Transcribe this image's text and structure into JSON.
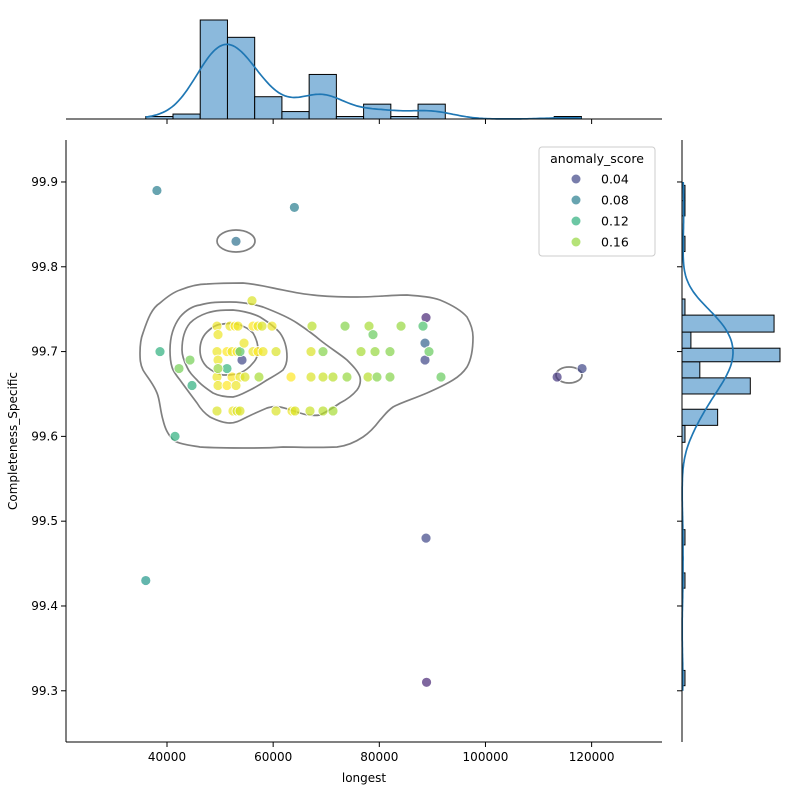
{
  "chart_data": {
    "type": "scatter",
    "kind": "jointplot",
    "xlabel": "longest",
    "ylabel": "Completeness_Specific",
    "xlim": [
      20970,
      133260
    ],
    "ylim": [
      99.2396,
      99.9495
    ],
    "xticks": [
      40000,
      60000,
      80000,
      100000,
      120000
    ],
    "xtick_labels": [
      "40000",
      "60000",
      "80000",
      "100000",
      "120000"
    ],
    "yticks": [
      99.3,
      99.4,
      99.5,
      99.6,
      99.7,
      99.8,
      99.9
    ],
    "ytick_labels": [
      "99.3",
      "99.4",
      "99.5",
      "99.6",
      "99.7",
      "99.8",
      "99.9"
    ],
    "grid": false,
    "hue": {
      "name": "anomaly_score",
      "colormap": "viridis",
      "norm": [
        0.0,
        0.19
      ],
      "legend_values": [
        0.04,
        0.08,
        0.12,
        0.16
      ],
      "legend_labels": [
        "0.04",
        "0.08",
        "0.12",
        "0.16"
      ]
    },
    "legend": {
      "title": "anomaly_score",
      "placement": "top-right"
    },
    "points": [
      {
        "x": 38100,
        "y": 99.89,
        "score": 0.08
      },
      {
        "x": 64000,
        "y": 99.87,
        "score": 0.08
      },
      {
        "x": 53000,
        "y": 99.83,
        "score": 0.07
      },
      {
        "x": 38680,
        "y": 99.7,
        "score": 0.12
      },
      {
        "x": 41510,
        "y": 99.6,
        "score": 0.12
      },
      {
        "x": 36000,
        "y": 99.43,
        "score": 0.1
      },
      {
        "x": 88900,
        "y": 99.31,
        "score": 0.02
      },
      {
        "x": 88800,
        "y": 99.48,
        "score": 0.04
      },
      {
        "x": 88800,
        "y": 99.74,
        "score": 0.02
      },
      {
        "x": 88610,
        "y": 99.71,
        "score": 0.06
      },
      {
        "x": 88610,
        "y": 99.69,
        "score": 0.04
      },
      {
        "x": 113500,
        "y": 99.67,
        "score": 0.03
      },
      {
        "x": 118200,
        "y": 99.68,
        "score": 0.04
      },
      {
        "x": 54130,
        "y": 99.69,
        "score": 0.04
      },
      {
        "x": 49420,
        "y": 99.73,
        "score": 0.185
      },
      {
        "x": 51870,
        "y": 99.73,
        "score": 0.185
      },
      {
        "x": 52810,
        "y": 99.73,
        "score": 0.19
      },
      {
        "x": 53380,
        "y": 99.73,
        "score": 0.185
      },
      {
        "x": 56200,
        "y": 99.73,
        "score": 0.19
      },
      {
        "x": 57140,
        "y": 99.73,
        "score": 0.185
      },
      {
        "x": 57900,
        "y": 99.73,
        "score": 0.18
      },
      {
        "x": 59780,
        "y": 99.73,
        "score": 0.185
      },
      {
        "x": 67320,
        "y": 99.73,
        "score": 0.17
      },
      {
        "x": 73540,
        "y": 99.73,
        "score": 0.155
      },
      {
        "x": 78060,
        "y": 99.73,
        "score": 0.165
      },
      {
        "x": 84090,
        "y": 99.73,
        "score": 0.16
      },
      {
        "x": 88230,
        "y": 99.73,
        "score": 0.135
      },
      {
        "x": 49420,
        "y": 99.7,
        "score": 0.185
      },
      {
        "x": 51300,
        "y": 99.7,
        "score": 0.19
      },
      {
        "x": 52250,
        "y": 99.7,
        "score": 0.185
      },
      {
        "x": 53190,
        "y": 99.7,
        "score": 0.19
      },
      {
        "x": 53750,
        "y": 99.7,
        "score": 0.14
      },
      {
        "x": 56200,
        "y": 99.7,
        "score": 0.185
      },
      {
        "x": 57140,
        "y": 99.7,
        "score": 0.19
      },
      {
        "x": 58090,
        "y": 99.7,
        "score": 0.185
      },
      {
        "x": 60540,
        "y": 99.7,
        "score": 0.18
      },
      {
        "x": 67130,
        "y": 99.7,
        "score": 0.18
      },
      {
        "x": 69390,
        "y": 99.7,
        "score": 0.155
      },
      {
        "x": 76550,
        "y": 99.7,
        "score": 0.165
      },
      {
        "x": 79190,
        "y": 99.7,
        "score": 0.16
      },
      {
        "x": 82010,
        "y": 99.7,
        "score": 0.155
      },
      {
        "x": 89360,
        "y": 99.7,
        "score": 0.145
      },
      {
        "x": 49420,
        "y": 99.67,
        "score": 0.185
      },
      {
        "x": 52250,
        "y": 99.67,
        "score": 0.19
      },
      {
        "x": 53750,
        "y": 99.67,
        "score": 0.185
      },
      {
        "x": 54700,
        "y": 99.67,
        "score": 0.18
      },
      {
        "x": 57330,
        "y": 99.67,
        "score": 0.165
      },
      {
        "x": 63360,
        "y": 99.67,
        "score": 0.19
      },
      {
        "x": 67130,
        "y": 99.67,
        "score": 0.18
      },
      {
        "x": 69390,
        "y": 99.67,
        "score": 0.175
      },
      {
        "x": 71270,
        "y": 99.67,
        "score": 0.17
      },
      {
        "x": 73910,
        "y": 99.67,
        "score": 0.16
      },
      {
        "x": 77870,
        "y": 99.67,
        "score": 0.17
      },
      {
        "x": 79560,
        "y": 99.67,
        "score": 0.155
      },
      {
        "x": 82010,
        "y": 99.67,
        "score": 0.155
      },
      {
        "x": 91620,
        "y": 99.67,
        "score": 0.145
      },
      {
        "x": 49610,
        "y": 99.66,
        "score": 0.185
      },
      {
        "x": 51300,
        "y": 99.66,
        "score": 0.19
      },
      {
        "x": 53000,
        "y": 99.66,
        "score": 0.185
      },
      {
        "x": 49420,
        "y": 99.63,
        "score": 0.18
      },
      {
        "x": 52430,
        "y": 99.63,
        "score": 0.185
      },
      {
        "x": 53190,
        "y": 99.63,
        "score": 0.18
      },
      {
        "x": 53750,
        "y": 99.63,
        "score": 0.18
      },
      {
        "x": 60540,
        "y": 99.63,
        "score": 0.18
      },
      {
        "x": 63550,
        "y": 99.63,
        "score": 0.185
      },
      {
        "x": 64120,
        "y": 99.63,
        "score": 0.18
      },
      {
        "x": 66940,
        "y": 99.63,
        "score": 0.175
      },
      {
        "x": 69390,
        "y": 99.63,
        "score": 0.17
      },
      {
        "x": 71270,
        "y": 99.63,
        "score": 0.165
      },
      {
        "x": 56010,
        "y": 99.76,
        "score": 0.18
      },
      {
        "x": 49610,
        "y": 99.72,
        "score": 0.185
      },
      {
        "x": 54510,
        "y": 99.71,
        "score": 0.185
      },
      {
        "x": 44330,
        "y": 99.69,
        "score": 0.15
      },
      {
        "x": 42260,
        "y": 99.68,
        "score": 0.15
      },
      {
        "x": 49610,
        "y": 99.69,
        "score": 0.185
      },
      {
        "x": 51300,
        "y": 99.68,
        "score": 0.125
      },
      {
        "x": 49610,
        "y": 99.68,
        "score": 0.16
      },
      {
        "x": 44710,
        "y": 99.66,
        "score": 0.12
      },
      {
        "x": 78810,
        "y": 99.72,
        "score": 0.145
      }
    ],
    "marginal_x_histogram": {
      "bin_start": 36000,
      "bin_width": 5130,
      "counts": [
        1,
        2,
        40,
        33,
        9,
        3,
        18,
        1,
        6,
        1,
        6,
        0,
        0,
        0,
        0,
        1
      ],
      "kde": true
    },
    "marginal_y_histogram": {
      "bins": [
        {
          "lo": 99.306,
          "hi": 99.324,
          "count": 1
        },
        {
          "lo": 99.421,
          "hi": 99.439,
          "count": 1
        },
        {
          "lo": 99.472,
          "hi": 99.49,
          "count": 1
        },
        {
          "lo": 99.593,
          "hi": 99.613,
          "count": 1
        },
        {
          "lo": 99.613,
          "hi": 99.632,
          "count": 12
        },
        {
          "lo": 99.65,
          "hi": 99.669,
          "count": 23
        },
        {
          "lo": 99.669,
          "hi": 99.688,
          "count": 6
        },
        {
          "lo": 99.688,
          "hi": 99.704,
          "count": 33
        },
        {
          "lo": 99.704,
          "hi": 99.723,
          "count": 3
        },
        {
          "lo": 99.723,
          "hi": 99.743,
          "count": 31
        },
        {
          "lo": 99.743,
          "hi": 99.762,
          "count": 1
        },
        {
          "lo": 99.818,
          "hi": 99.836,
          "count": 1
        },
        {
          "lo": 99.86,
          "hi": 99.878,
          "count": 1
        },
        {
          "lo": 99.878,
          "hi": 99.896,
          "count": 1
        }
      ],
      "kde": true
    },
    "kde_contours": true,
    "colors": {
      "histogram_fill": "#8bb9dc",
      "kde_line": "#1f77b4",
      "contour_line": "#808080"
    }
  }
}
